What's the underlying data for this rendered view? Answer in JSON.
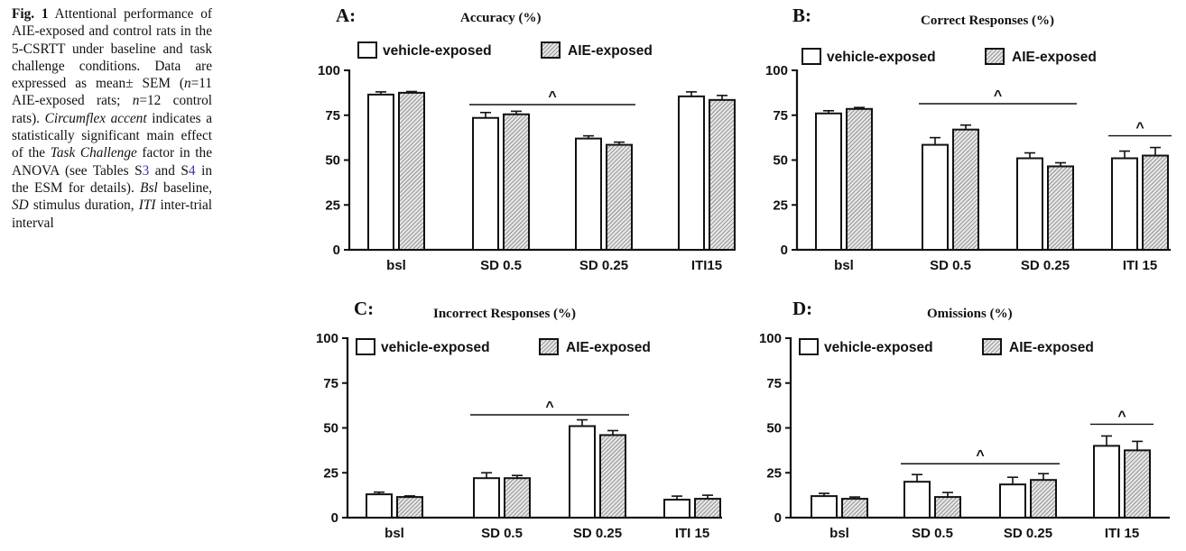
{
  "caption": {
    "fig_label": "Fig. 1",
    "part1": " Attentional performance of AIE-exposed and control rats in the 5-CSRTT under baseline and task challenge conditions. Data are expressed as mean± SEM (",
    "n1": "n",
    "part2": "=11 AIE-exposed rats; ",
    "n2": "n",
    "part3": "=12 control rats). ",
    "circ": "Circumflex accent",
    "part4": " indicates a statistically significant main effect of the ",
    "task": "Task Challenge",
    "part5": " factor in the ANOVA (see Tables S",
    "ref3": "3",
    "part6": " and S",
    "ref4": "4",
    "part7": " in the ESM for details). ",
    "bsl": "Bsl",
    "part8": " baseline, ",
    "sd": "SD",
    "part9": " stimulus duration, ",
    "iti": "ITI",
    "part10": " inter-trial interval"
  },
  "legend": {
    "vehicle": "vehicle-exposed",
    "aie": "AIE-exposed"
  },
  "colors": {
    "ink": "#111111",
    "link": "#3b35a8",
    "hatch_bg": "#e6e6e6"
  },
  "sig_symbol": "^",
  "chart_data": [
    {
      "type": "bar",
      "panel": "A:",
      "title": "Accuracy (%)",
      "categories": [
        "bsl",
        "SD 0.5",
        "SD 0.25",
        "ITI15"
      ],
      "ylim": [
        0,
        100
      ],
      "yticks": [
        "0",
        "25",
        "50",
        "75",
        "100"
      ],
      "xlabel": "",
      "ylabel": "",
      "legend": "top-left",
      "series": [
        {
          "name": "vehicle-exposed",
          "values": [
            86.5,
            73.5,
            62,
            85.5
          ],
          "sem": [
            1.5,
            3,
            1.5,
            2.5
          ]
        },
        {
          "name": "AIE-exposed",
          "values": [
            87.5,
            75.5,
            58.5,
            83.5
          ],
          "sem": [
            0.7,
            1.7,
            1.5,
            2.5
          ]
        }
      ],
      "significance": [
        {
          "from": 1,
          "to": 2,
          "label": "^"
        }
      ]
    },
    {
      "type": "bar",
      "panel": "B:",
      "title": "Correct Responses (%)",
      "categories": [
        "bsl",
        "SD 0.5",
        "SD 0.25",
        "ITI 15"
      ],
      "ylim": [
        0,
        100
      ],
      "yticks": [
        "0",
        "25",
        "50",
        "75",
        "100"
      ],
      "xlabel": "",
      "ylabel": "",
      "legend": "top-left",
      "series": [
        {
          "name": "vehicle-exposed",
          "values": [
            76,
            58.5,
            51,
            51
          ],
          "sem": [
            1.5,
            4,
            3,
            4
          ]
        },
        {
          "name": "AIE-exposed",
          "values": [
            78.5,
            67,
            46.5,
            52.5
          ],
          "sem": [
            0.8,
            2.5,
            2,
            4.5
          ]
        }
      ],
      "significance": [
        {
          "from": 1,
          "to": 2,
          "label": "^"
        },
        {
          "from": 3,
          "to": 3,
          "label": "^"
        }
      ]
    },
    {
      "type": "bar",
      "panel": "C:",
      "title": "Incorrect Responses (%)",
      "categories": [
        "bsl",
        "SD 0.5",
        "SD 0.25",
        "ITI 15"
      ],
      "ylim": [
        0,
        100
      ],
      "yticks": [
        "0",
        "25",
        "50",
        "75",
        "100"
      ],
      "xlabel": "",
      "ylabel": "",
      "legend": "top-left",
      "series": [
        {
          "name": "vehicle-exposed",
          "values": [
            13,
            22,
            51,
            10
          ],
          "sem": [
            1.2,
            3,
            3.5,
            2
          ]
        },
        {
          "name": "AIE-exposed",
          "values": [
            11.5,
            22,
            46,
            10.5
          ],
          "sem": [
            0.6,
            1.5,
            2.5,
            2
          ]
        }
      ],
      "significance": [
        {
          "from": 1,
          "to": 2,
          "label": "^"
        }
      ]
    },
    {
      "type": "bar",
      "panel": "D:",
      "title": "Omissions (%)",
      "categories": [
        "bsl",
        "SD 0.5",
        "SD 0.25",
        "ITI 15"
      ],
      "ylim": [
        0,
        100
      ],
      "yticks": [
        "0",
        "25",
        "50",
        "75",
        "100"
      ],
      "xlabel": "",
      "ylabel": "",
      "legend": "top-left",
      "series": [
        {
          "name": "vehicle-exposed",
          "values": [
            12,
            20,
            18.5,
            40
          ],
          "sem": [
            1.5,
            4,
            4,
            5.5
          ]
        },
        {
          "name": "AIE-exposed",
          "values": [
            10.5,
            11.5,
            21,
            37.5
          ],
          "sem": [
            1,
            2.5,
            3.5,
            5
          ]
        }
      ],
      "significance": [
        {
          "from": 1,
          "to": 2,
          "label": "^"
        },
        {
          "from": 3,
          "to": 3,
          "label": "^"
        }
      ]
    }
  ]
}
